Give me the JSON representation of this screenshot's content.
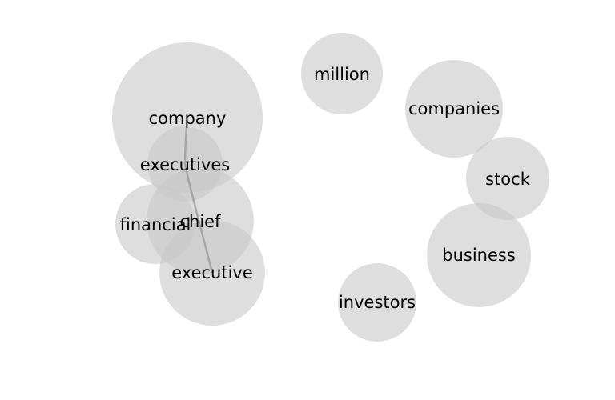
{
  "words": [
    {
      "id": "company",
      "label": "company"
    },
    {
      "id": "executives",
      "label": "executives"
    },
    {
      "id": "chief",
      "label": "chief"
    },
    {
      "id": "financial",
      "label": "financial"
    },
    {
      "id": "executive",
      "label": "executive"
    },
    {
      "id": "million",
      "label": "million"
    },
    {
      "id": "companies",
      "label": "companies"
    },
    {
      "id": "stock",
      "label": "stock"
    },
    {
      "id": "business",
      "label": "business"
    },
    {
      "id": "investors",
      "label": "investors"
    }
  ],
  "links": [
    {
      "source": "company",
      "target": "executives"
    },
    {
      "source": "executives",
      "target": "executive"
    }
  ],
  "colors": {
    "bubble": "#c8c8c8",
    "link": "#9a9a9a",
    "text": "#000000"
  }
}
